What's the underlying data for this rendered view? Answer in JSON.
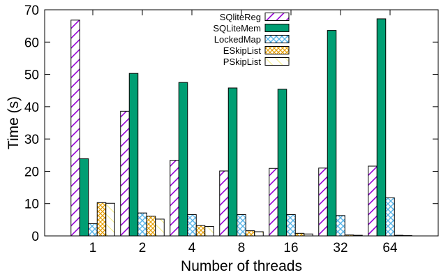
{
  "chart_data": {
    "type": "bar",
    "title": "",
    "xlabel": "Number of threads",
    "ylabel": "Time (s)",
    "ylim": [
      0,
      70
    ],
    "yticks": [
      0,
      10,
      20,
      30,
      40,
      50,
      60,
      70
    ],
    "categories": [
      "1",
      "2",
      "4",
      "8",
      "16",
      "32",
      "64"
    ],
    "legend_position": "top-center",
    "grid": false,
    "series": [
      {
        "name": "SQliteReg",
        "pattern": "diagonal-stripes",
        "color": "#9400d3",
        "values": [
          66.8,
          38.6,
          23.4,
          20.1,
          20.9,
          21.0,
          21.6
        ]
      },
      {
        "name": "SQLiteMem",
        "pattern": "solid",
        "color": "#009e73",
        "values": [
          23.9,
          50.3,
          47.5,
          45.8,
          45.4,
          63.6,
          67.2
        ]
      },
      {
        "name": "LockedMap",
        "pattern": "crosshatch",
        "color": "#56b4e9",
        "values": [
          3.8,
          7.1,
          6.6,
          6.6,
          6.6,
          6.3,
          11.8
        ]
      },
      {
        "name": "ESkipList",
        "pattern": "crosshatch",
        "color": "#e69f00",
        "values": [
          10.3,
          6.1,
          3.2,
          1.6,
          0.8,
          0.3,
          0.2
        ]
      },
      {
        "name": "PSkipList",
        "pattern": "diagonal-lines",
        "color": "#f0e442",
        "values": [
          10.1,
          5.2,
          2.9,
          1.3,
          0.6,
          0.2,
          0.1
        ]
      }
    ]
  }
}
